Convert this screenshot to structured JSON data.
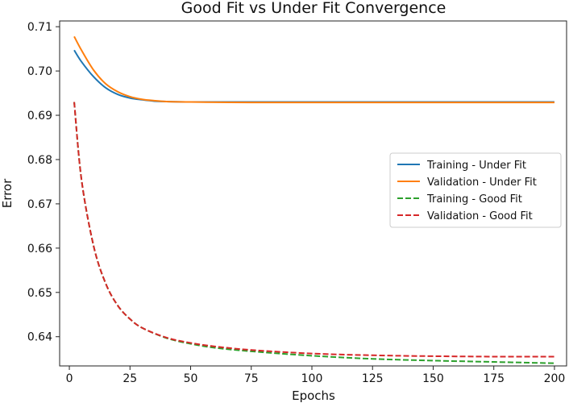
{
  "chart_data": {
    "type": "line",
    "title": "Good Fit vs Under Fit Convergence",
    "xlabel": "Epochs",
    "ylabel": "Error",
    "xlim": [
      -4,
      205
    ],
    "ylim": [
      0.6334,
      0.7113
    ],
    "x_ticks": [
      0,
      25,
      50,
      75,
      100,
      125,
      150,
      175,
      200
    ],
    "y_ticks": [
      0.64,
      0.65,
      0.66,
      0.67,
      0.68,
      0.69,
      0.7,
      0.71
    ],
    "grid": false,
    "legend_position": "center-right",
    "series": [
      {
        "name": "Training - Under Fit",
        "color": "#1f77b4",
        "style": "solid",
        "x": [
          2,
          5,
          10,
          15,
          20,
          25,
          30,
          35,
          40,
          50,
          75,
          100,
          125,
          150,
          175,
          200
        ],
        "values": [
          0.7047,
          0.7021,
          0.6987,
          0.6962,
          0.6947,
          0.6939,
          0.6935,
          0.6932,
          0.6931,
          0.693,
          0.693,
          0.693,
          0.693,
          0.693,
          0.693,
          0.693
        ]
      },
      {
        "name": "Validation - Under Fit",
        "color": "#ff7f0e",
        "style": "solid",
        "x": [
          2,
          5,
          10,
          15,
          20,
          25,
          30,
          35,
          40,
          50,
          75,
          100,
          125,
          150,
          175,
          200
        ],
        "values": [
          0.7078,
          0.7047,
          0.7002,
          0.6971,
          0.6953,
          0.6942,
          0.6936,
          0.6933,
          0.6931,
          0.693,
          0.6929,
          0.6929,
          0.6929,
          0.6929,
          0.6929,
          0.6929
        ]
      },
      {
        "name": "Training - Good Fit",
        "color": "#2ca02c",
        "style": "dashed",
        "x": [
          2,
          5,
          10,
          15,
          20,
          25,
          30,
          40,
          50,
          60,
          75,
          100,
          125,
          150,
          175,
          200
        ],
        "values": [
          0.693,
          0.6755,
          0.6605,
          0.652,
          0.647,
          0.644,
          0.642,
          0.6397,
          0.6384,
          0.6375,
          0.6367,
          0.6357,
          0.635,
          0.6346,
          0.6343,
          0.634
        ]
      },
      {
        "name": "Validation - Good Fit",
        "color": "#d62728",
        "style": "dashed",
        "x": [
          2,
          5,
          10,
          15,
          20,
          25,
          30,
          40,
          50,
          60,
          75,
          100,
          125,
          150,
          175,
          200
        ],
        "values": [
          0.693,
          0.6755,
          0.6605,
          0.652,
          0.647,
          0.644,
          0.642,
          0.6398,
          0.6386,
          0.6378,
          0.637,
          0.6362,
          0.6358,
          0.6356,
          0.6355,
          0.6355
        ]
      }
    ]
  }
}
